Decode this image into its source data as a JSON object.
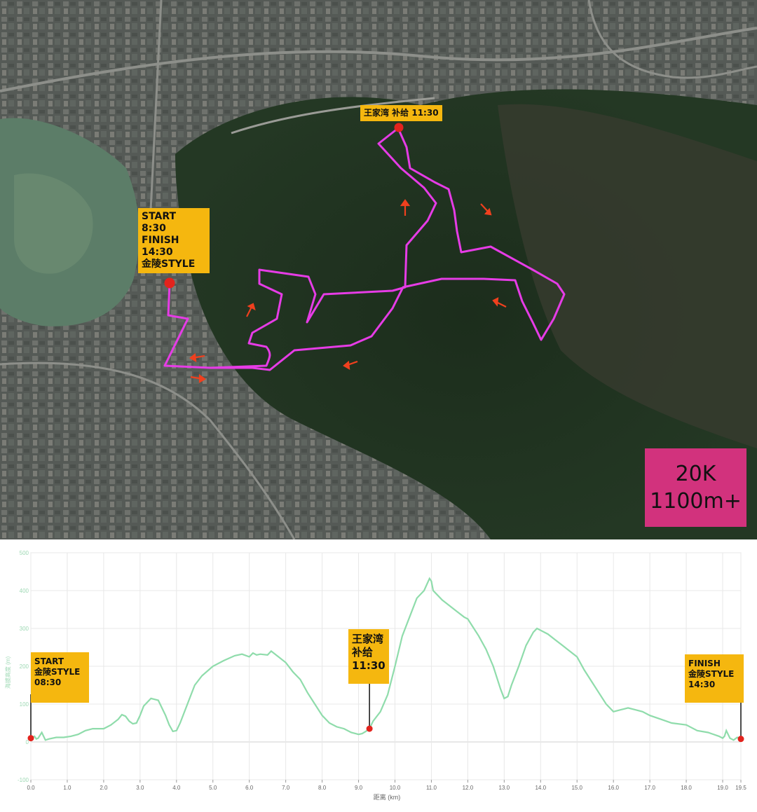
{
  "map": {
    "supply_label": "王家湾 补给 11:30",
    "start_label_lines": [
      "START",
      "8:30",
      "FINISH",
      "14:30",
      "金陵STYLE"
    ],
    "stats_lines": [
      "20K",
      "1100m+"
    ],
    "colors": {
      "route": "#e63ce6",
      "marker": "#e3231d",
      "label_bg": "#f5b70f",
      "stats_bg": "#d2327d",
      "arrow": "#f0401e"
    }
  },
  "chart_data": {
    "type": "line",
    "title": "",
    "xlabel": "距离 (km)",
    "ylabel": "海拔高度 (m)",
    "xlim": [
      0,
      19.5
    ],
    "ylim": [
      -100,
      500
    ],
    "x_ticks": [
      0.0,
      1.0,
      2.0,
      3.0,
      4.0,
      5.0,
      6.0,
      7.0,
      8.0,
      9.0,
      10.0,
      11.0,
      12.0,
      13.0,
      14.0,
      15.0,
      16.0,
      17.0,
      18.0,
      19.0,
      19.5
    ],
    "y_ticks": [
      -100,
      0,
      100,
      200,
      300,
      400,
      500
    ],
    "grid": true,
    "line_color": "#8fdcab",
    "series": [
      {
        "x": [
          0.0,
          0.1,
          0.15,
          0.2,
          0.3,
          0.4,
          0.5,
          0.7,
          0.9,
          1.1,
          1.3,
          1.5,
          1.7,
          2.0,
          2.2,
          2.4,
          2.5,
          2.6,
          2.7,
          2.8,
          2.9,
          3.0,
          3.1,
          3.3,
          3.5,
          3.7,
          3.8,
          3.9,
          4.0,
          4.1,
          4.3,
          4.5,
          4.7,
          5.0,
          5.3,
          5.6,
          5.8,
          6.0,
          6.1,
          6.2,
          6.3,
          6.5,
          6.6,
          6.8,
          7.0,
          7.2,
          7.4,
          7.6,
          7.8,
          8.0,
          8.2,
          8.4,
          8.6,
          8.8,
          9.0,
          9.1,
          9.2,
          9.3,
          9.4,
          9.6,
          9.8,
          10.0,
          10.2,
          10.4,
          10.6,
          10.8,
          10.95,
          11.0,
          11.05,
          11.1,
          11.3,
          11.5,
          11.7,
          11.9,
          12.0,
          12.1,
          12.3,
          12.5,
          12.7,
          12.9,
          13.0,
          13.1,
          13.2,
          13.4,
          13.6,
          13.8,
          13.9,
          14.0,
          14.2,
          14.4,
          14.6,
          14.8,
          15.0,
          15.2,
          15.4,
          15.6,
          15.8,
          16.0,
          16.2,
          16.4,
          16.6,
          16.8,
          17.0,
          17.3,
          17.6,
          18.0,
          18.3,
          18.6,
          18.9,
          19.0,
          19.05,
          19.1,
          19.2,
          19.3,
          19.4,
          19.5
        ],
        "y": [
          10,
          15,
          8,
          10,
          25,
          5,
          8,
          12,
          12,
          15,
          20,
          30,
          35,
          35,
          45,
          60,
          72,
          68,
          55,
          48,
          50,
          70,
          95,
          115,
          110,
          70,
          45,
          28,
          30,
          50,
          100,
          150,
          175,
          200,
          215,
          228,
          232,
          225,
          235,
          230,
          232,
          230,
          240,
          225,
          210,
          185,
          165,
          130,
          100,
          70,
          50,
          40,
          35,
          25,
          20,
          22,
          28,
          35,
          55,
          80,
          125,
          200,
          280,
          330,
          380,
          400,
          432,
          425,
          400,
          395,
          375,
          360,
          345,
          330,
          325,
          310,
          280,
          245,
          200,
          140,
          115,
          120,
          150,
          200,
          255,
          290,
          300,
          295,
          285,
          270,
          255,
          240,
          225,
          190,
          160,
          130,
          100,
          80,
          85,
          90,
          85,
          80,
          70,
          60,
          50,
          45,
          30,
          25,
          15,
          10,
          15,
          30,
          10,
          5,
          12,
          8
        ]
      }
    ],
    "annotations": [
      {
        "x": 0.0,
        "y": 10,
        "lines": [
          "START",
          "金陵STYLE",
          "08:30"
        ]
      },
      {
        "x": 9.3,
        "y": 35,
        "lines": [
          "王家湾",
          "补给",
          "11:30"
        ]
      },
      {
        "x": 19.5,
        "y": 8,
        "lines": [
          "FINISH",
          "金陵STYLE",
          "14:30"
        ]
      }
    ]
  }
}
